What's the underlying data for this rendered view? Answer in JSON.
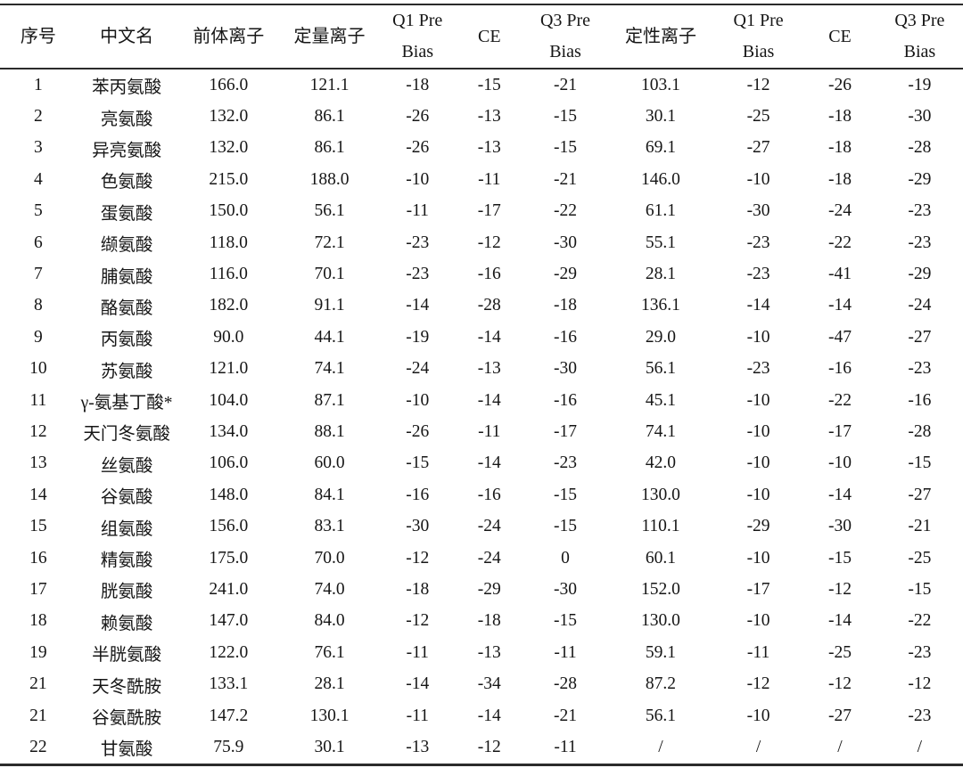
{
  "table": {
    "description": "MRM mass-spectrometry acquisition parameters for amino acids",
    "columns": [
      {
        "key": "index",
        "label": "序号"
      },
      {
        "key": "chinese_name",
        "label": "中文名"
      },
      {
        "key": "precursor_ion",
        "label": "前体离子"
      },
      {
        "key": "quant_ion",
        "label": "定量离子"
      },
      {
        "key": "q1_pre_bias_1",
        "label": "Q1 Pre\nBias"
      },
      {
        "key": "ce_1",
        "label": "CE"
      },
      {
        "key": "q3_pre_bias_1",
        "label": "Q3 Pre\nBias"
      },
      {
        "key": "qual_ion",
        "label": "定性离子"
      },
      {
        "key": "q1_pre_bias_2",
        "label": "Q1 Pre\nBias"
      },
      {
        "key": "ce_2",
        "label": "CE"
      },
      {
        "key": "q3_pre_bias_2",
        "label": "Q3 Pre\nBias"
      }
    ],
    "rows": [
      [
        "1",
        "苯丙氨酸",
        "166.0",
        "121.1",
        "-18",
        "-15",
        "-21",
        "103.1",
        "-12",
        "-26",
        "-19"
      ],
      [
        "2",
        "亮氨酸",
        "132.0",
        "86.1",
        "-26",
        "-13",
        "-15",
        "30.1",
        "-25",
        "-18",
        "-30"
      ],
      [
        "3",
        "异亮氨酸",
        "132.0",
        "86.1",
        "-26",
        "-13",
        "-15",
        "69.1",
        "-27",
        "-18",
        "-28"
      ],
      [
        "4",
        "色氨酸",
        "215.0",
        "188.0",
        "-10",
        "-11",
        "-21",
        "146.0",
        "-10",
        "-18",
        "-29"
      ],
      [
        "5",
        "蛋氨酸",
        "150.0",
        "56.1",
        "-11",
        "-17",
        "-22",
        "61.1",
        "-30",
        "-24",
        "-23"
      ],
      [
        "6",
        "缬氨酸",
        "118.0",
        "72.1",
        "-23",
        "-12",
        "-30",
        "55.1",
        "-23",
        "-22",
        "-23"
      ],
      [
        "7",
        "脯氨酸",
        "116.0",
        "70.1",
        "-23",
        "-16",
        "-29",
        "28.1",
        "-23",
        "-41",
        "-29"
      ],
      [
        "8",
        "酪氨酸",
        "182.0",
        "91.1",
        "-14",
        "-28",
        "-18",
        "136.1",
        "-14",
        "-14",
        "-24"
      ],
      [
        "9",
        "丙氨酸",
        "90.0",
        "44.1",
        "-19",
        "-14",
        "-16",
        "29.0",
        "-10",
        "-47",
        "-27"
      ],
      [
        "10",
        "苏氨酸",
        "121.0",
        "74.1",
        "-24",
        "-13",
        "-30",
        "56.1",
        "-23",
        "-16",
        "-23"
      ],
      [
        "11",
        "γ-氨基丁酸*",
        "104.0",
        "87.1",
        "-10",
        "-14",
        "-16",
        "45.1",
        "-10",
        "-22",
        "-16"
      ],
      [
        "12",
        "天门冬氨酸",
        "134.0",
        "88.1",
        "-26",
        "-11",
        "-17",
        "74.1",
        "-10",
        "-17",
        "-28"
      ],
      [
        "13",
        "丝氨酸",
        "106.0",
        "60.0",
        "-15",
        "-14",
        "-23",
        "42.0",
        "-10",
        "-10",
        "-15"
      ],
      [
        "14",
        "谷氨酸",
        "148.0",
        "84.1",
        "-16",
        "-16",
        "-15",
        "130.0",
        "-10",
        "-14",
        "-27"
      ],
      [
        "15",
        "组氨酸",
        "156.0",
        "83.1",
        "-30",
        "-24",
        "-15",
        "110.1",
        "-29",
        "-30",
        "-21"
      ],
      [
        "16",
        "精氨酸",
        "175.0",
        "70.0",
        "-12",
        "-24",
        "0",
        "60.1",
        "-10",
        "-15",
        "-25"
      ],
      [
        "17",
        "胱氨酸",
        "241.0",
        "74.0",
        "-18",
        "-29",
        "-30",
        "152.0",
        "-17",
        "-12",
        "-15"
      ],
      [
        "18",
        "赖氨酸",
        "147.0",
        "84.0",
        "-12",
        "-18",
        "-15",
        "130.0",
        "-10",
        "-14",
        "-22"
      ],
      [
        "19",
        "半胱氨酸",
        "122.0",
        "76.1",
        "-11",
        "-13",
        "-11",
        "59.1",
        "-11",
        "-25",
        "-23"
      ],
      [
        "21",
        "天冬酰胺",
        "133.1",
        "28.1",
        "-14",
        "-34",
        "-28",
        "87.2",
        "-12",
        "-12",
        "-12"
      ],
      [
        "21",
        "谷氨酰胺",
        "147.2",
        "130.1",
        "-11",
        "-14",
        "-21",
        "56.1",
        "-10",
        "-27",
        "-23"
      ],
      [
        "22",
        "甘氨酸",
        "75.9",
        "30.1",
        "-13",
        "-12",
        "-11",
        "/",
        "/",
        "/",
        "/"
      ]
    ]
  }
}
